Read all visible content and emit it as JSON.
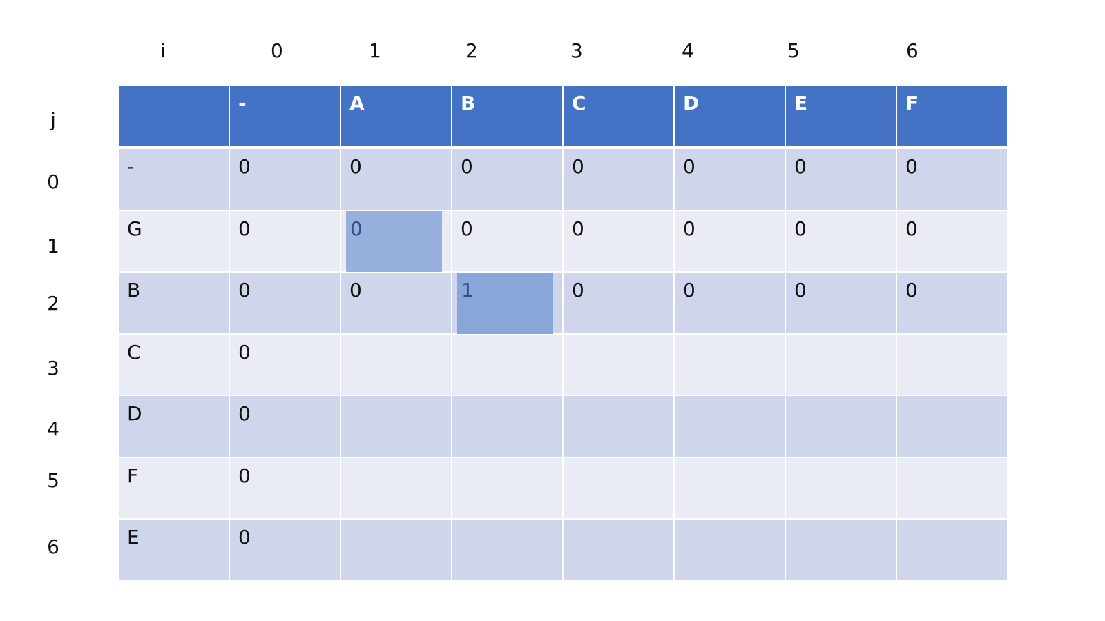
{
  "i_label": "i",
  "j_label": "j",
  "i_indices": [
    "0",
    "1",
    "2",
    "3",
    "4",
    "5",
    "6"
  ],
  "j_indices": [
    "0",
    "1",
    "2",
    "3",
    "4",
    "5",
    "6"
  ],
  "header_row": [
    "",
    "-",
    "A",
    "B",
    "C",
    "D",
    "E",
    "F"
  ],
  "rows": [
    [
      "-",
      "0",
      "0",
      "0",
      "0",
      "0",
      "0",
      "0"
    ],
    [
      "G",
      "0",
      "0",
      "0",
      "0",
      "0",
      "0",
      "0"
    ],
    [
      "B",
      "0",
      "0",
      "1",
      "0",
      "0",
      "0",
      "0"
    ],
    [
      "C",
      "0",
      "",
      "",
      "",
      "",
      "",
      ""
    ],
    [
      "D",
      "0",
      "",
      "",
      "",
      "",
      "",
      ""
    ],
    [
      "F",
      "0",
      "",
      "",
      "",
      "",
      "",
      ""
    ],
    [
      "E",
      "0",
      "",
      "",
      "",
      "",
      "",
      ""
    ]
  ],
  "highlights": [
    {
      "row": 1,
      "col": 2,
      "value": "0",
      "color": "#97b0de"
    },
    {
      "row": 2,
      "col": 3,
      "value": "1",
      "color": "#8aa5d8"
    }
  ],
  "colors": {
    "header": "#4472c4",
    "row_dark": "#cfd5ea",
    "row_light": "#e9ebf5"
  }
}
